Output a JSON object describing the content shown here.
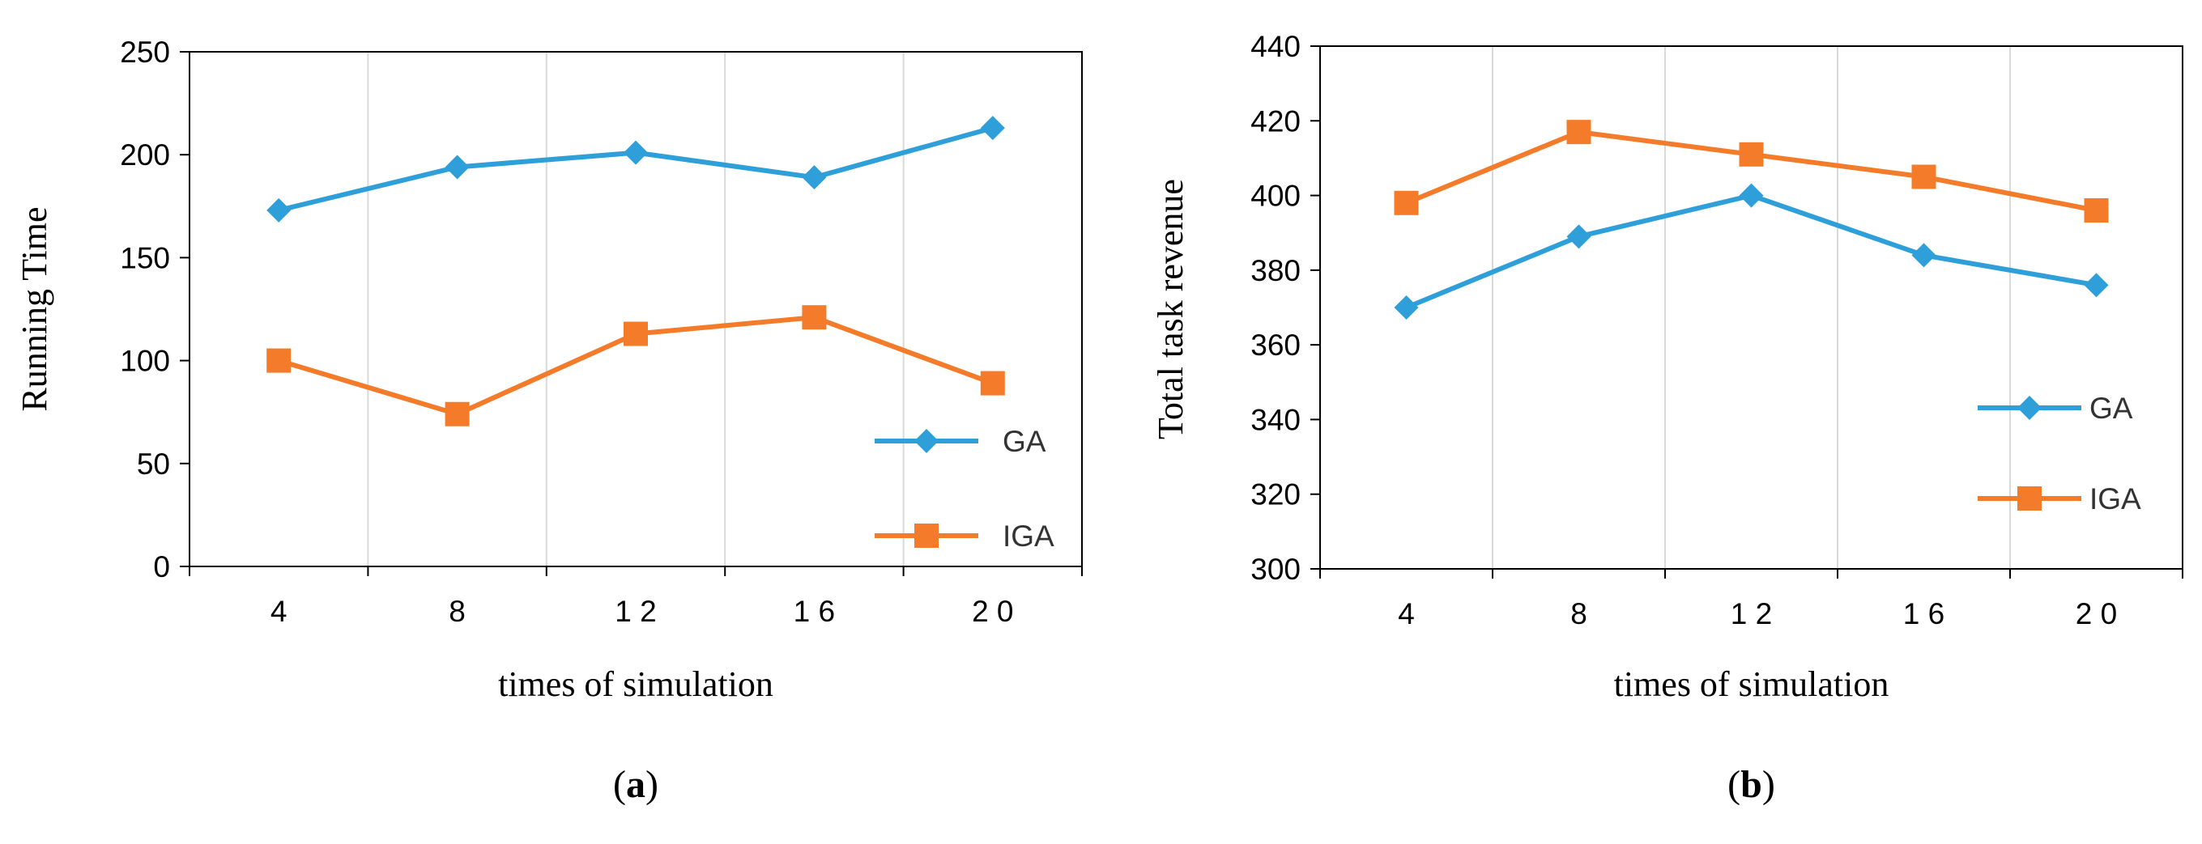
{
  "chart_data": [
    {
      "type": "line",
      "panel_label": "a",
      "categories": [
        "4",
        "8",
        "12",
        "16",
        "20"
      ],
      "series": [
        {
          "name": "GA",
          "color": "#2e9fd8",
          "marker": "diamond",
          "values": [
            173,
            194,
            201,
            189,
            213
          ]
        },
        {
          "name": "IGA",
          "color": "#f47b2a",
          "marker": "square",
          "values": [
            100,
            74,
            113,
            121,
            89
          ]
        }
      ],
      "title": "",
      "xlabel": "times of simulation",
      "ylabel": "Running Time",
      "ylim": [
        0,
        250
      ],
      "yticks": [
        0,
        50,
        100,
        150,
        200,
        250
      ],
      "xtick_labels": [
        "4",
        "8",
        "1 2",
        "1 6",
        "2 0"
      ],
      "grid": "vertical",
      "legend_position": "bottom-right"
    },
    {
      "type": "line",
      "panel_label": "b",
      "categories": [
        "4",
        "8",
        "12",
        "16",
        "20"
      ],
      "series": [
        {
          "name": "GA",
          "color": "#2e9fd8",
          "marker": "diamond",
          "values": [
            370,
            389,
            400,
            384,
            376
          ]
        },
        {
          "name": "IGA",
          "color": "#f47b2a",
          "marker": "square",
          "values": [
            398,
            417,
            411,
            405,
            396
          ]
        }
      ],
      "title": "",
      "xlabel": "times of simulation",
      "ylabel": "Total task revenue",
      "ylim": [
        300,
        440
      ],
      "yticks": [
        300,
        320,
        340,
        360,
        380,
        400,
        420,
        440
      ],
      "xtick_labels": [
        "4",
        "8",
        "1 2",
        "1 6",
        "2 0"
      ],
      "grid": "vertical",
      "legend_position": "bottom-right"
    }
  ]
}
